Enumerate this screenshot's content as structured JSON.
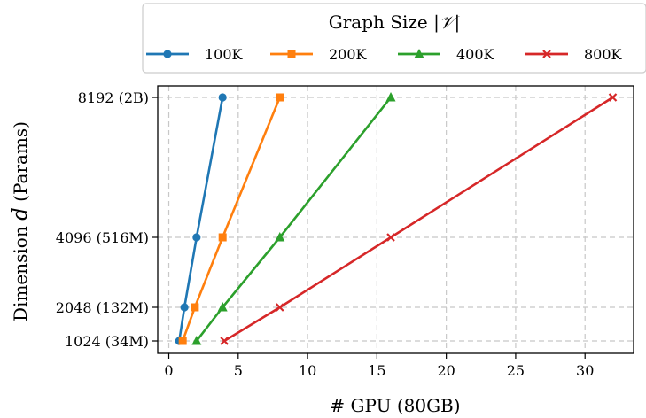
{
  "chart_data": {
    "type": "line",
    "xlabel": "# GPU (80GB)",
    "ylabel_prefix": "Dimension ",
    "ylabel_var": "d",
    "ylabel_suffix": " (Params)",
    "xlim": [
      -0.8,
      33.5
    ],
    "xticks": [
      0,
      5,
      10,
      15,
      20,
      25,
      30
    ],
    "yticks": [
      {
        "value": 1024,
        "label": "1024 (34M)"
      },
      {
        "value": 2048,
        "label": "2048 (132M)"
      },
      {
        "value": 4096,
        "label": "4096 (516M)"
      },
      {
        "value": 8192,
        "label": "8192 (2B)"
      }
    ],
    "grid": true,
    "legend": {
      "title_prefix": "Graph Size |",
      "title_var": "𝒱",
      "title_suffix": "|",
      "placement": "top"
    },
    "series": [
      {
        "name": "100K",
        "color": "#1f77b4",
        "marker": "circle",
        "points": [
          [
            0.75,
            1024
          ],
          [
            1.125,
            2048
          ],
          [
            2,
            4096
          ],
          [
            3.875,
            8192
          ]
        ]
      },
      {
        "name": "200K",
        "color": "#ff7f0e",
        "marker": "square",
        "points": [
          [
            1,
            1024
          ],
          [
            1.875,
            2048
          ],
          [
            3.875,
            4096
          ],
          [
            8,
            8192
          ]
        ]
      },
      {
        "name": "400K",
        "color": "#2ca02c",
        "marker": "triangle",
        "points": [
          [
            2,
            1024
          ],
          [
            3.875,
            2048
          ],
          [
            8,
            4096
          ],
          [
            16,
            8192
          ]
        ]
      },
      {
        "name": "800K",
        "color": "#d62728",
        "marker": "x",
        "points": [
          [
            4,
            1024
          ],
          [
            8,
            2048
          ],
          [
            16,
            4096
          ],
          [
            32,
            8192
          ]
        ]
      }
    ]
  }
}
